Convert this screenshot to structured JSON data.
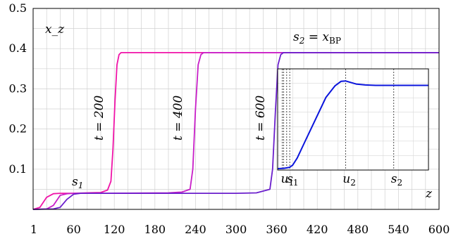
{
  "chart_data": {
    "type": "line",
    "title": "",
    "xlabel": "z",
    "ylabel": "x_z",
    "xlim": [
      0,
      600
    ],
    "ylim": [
      0,
      0.5
    ],
    "x_ticks": [
      "1",
      "60",
      "120",
      "180",
      "240",
      "300",
      "360",
      "420",
      "480",
      "540",
      "600"
    ],
    "x_tick_values": [
      1,
      60,
      120,
      180,
      240,
      300,
      360,
      420,
      480,
      540,
      600
    ],
    "y_ticks": [
      "0.1",
      "0.2",
      "0.3",
      "0.4",
      "0.5"
    ],
    "y_tick_values": [
      0.1,
      0.2,
      0.3,
      0.4,
      0.5
    ],
    "grid": true,
    "series": [
      {
        "name": "t = 200",
        "color": "#f014a8",
        "x": [
          0,
          10,
          20,
          30,
          40,
          60,
          80,
          100,
          110,
          115,
          118,
          121,
          124,
          127,
          130,
          140,
          200,
          600
        ],
        "y": [
          0,
          0.005,
          0.03,
          0.039,
          0.04,
          0.04,
          0.041,
          0.042,
          0.048,
          0.07,
          0.15,
          0.27,
          0.36,
          0.385,
          0.39,
          0.39,
          0.39,
          0.39
        ]
      },
      {
        "name": "t = 400",
        "color": "#c81ec8",
        "x": [
          0,
          20,
          30,
          40,
          50,
          60,
          100,
          200,
          220,
          232,
          236,
          240,
          244,
          248,
          252,
          260,
          600
        ],
        "y": [
          0,
          0.001,
          0.01,
          0.035,
          0.039,
          0.04,
          0.04,
          0.041,
          0.043,
          0.05,
          0.1,
          0.25,
          0.36,
          0.385,
          0.39,
          0.39,
          0.39
        ]
      },
      {
        "name": "t = 600",
        "color": "#6a1ecc",
        "x": [
          0,
          30,
          40,
          50,
          60,
          70,
          100,
          300,
          330,
          350,
          354,
          358,
          362,
          366,
          370,
          380,
          600
        ],
        "y": [
          0,
          0.001,
          0.005,
          0.025,
          0.038,
          0.04,
          0.04,
          0.04,
          0.041,
          0.05,
          0.1,
          0.24,
          0.36,
          0.385,
          0.39,
          0.39,
          0.39
        ]
      }
    ],
    "annotations": {
      "t200": "t = 200",
      "t400": "t = 400",
      "t600": "t = 600",
      "s1": "s",
      "s1_sub": "1",
      "s2": "s",
      "s2_sub": "2",
      "s2_eq": " = x",
      "s2_bp": "BP"
    },
    "inset": {
      "color": "#0a14dc",
      "x": [
        0,
        0.04,
        0.08,
        0.1,
        0.13,
        0.18,
        0.25,
        0.32,
        0.38,
        0.42,
        0.45,
        0.48,
        0.52,
        0.58,
        0.65,
        0.72,
        0.8,
        1
      ],
      "y": [
        0,
        0.003,
        0.015,
        0.04,
        0.12,
        0.3,
        0.55,
        0.8,
        0.93,
        0.98,
        0.985,
        0.97,
        0.95,
        0.94,
        0.935,
        0.935,
        0.935,
        0.935
      ],
      "markers": [
        {
          "label": "u",
          "sub": "1",
          "pos": 0.04
        },
        {
          "label": "s",
          "sub": "1",
          "pos": 0.08
        },
        {
          "label": "u",
          "sub": "2",
          "pos": 0.45
        },
        {
          "label": "s",
          "sub": "2",
          "pos": 0.77
        }
      ]
    }
  }
}
